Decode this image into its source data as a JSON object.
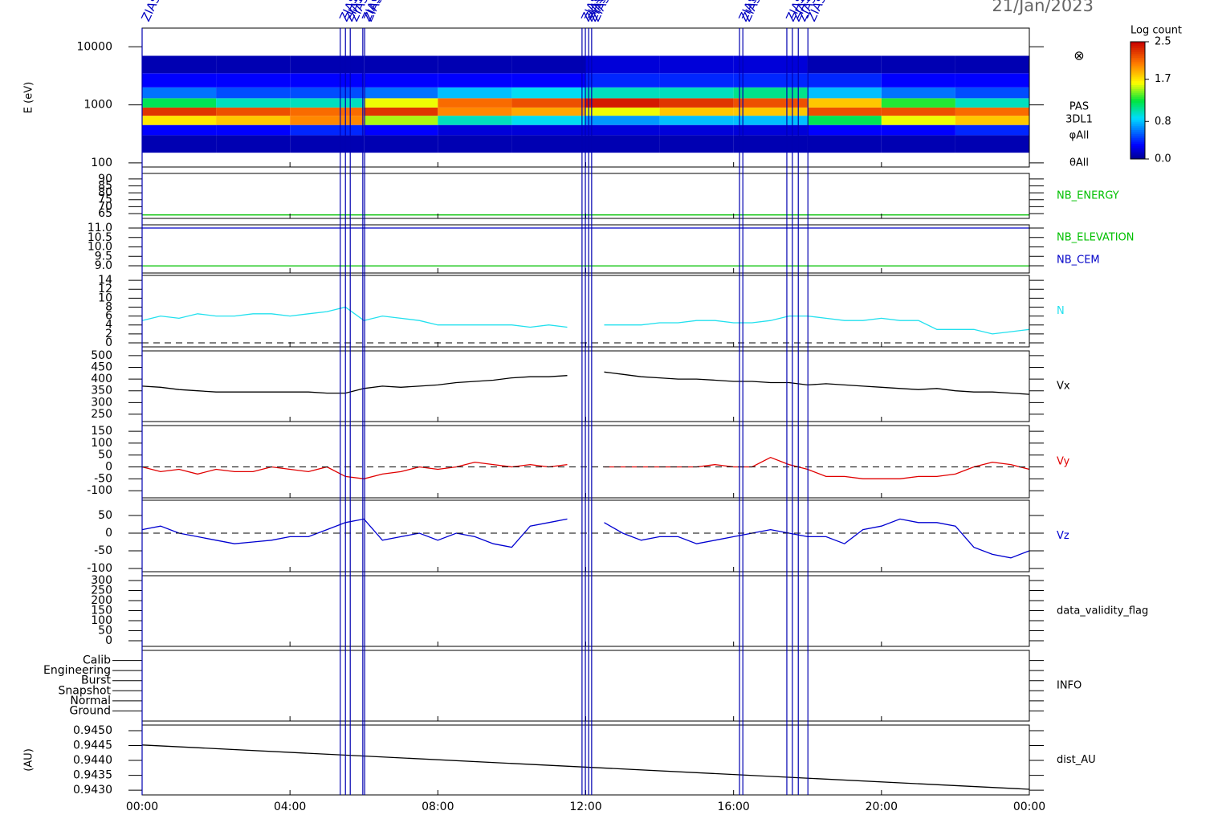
{
  "date": "21/Jan/2023",
  "event_markers": {
    "label": "ZIAS",
    "x": [
      0,
      5.36,
      5.5,
      5.63,
      5.97,
      6.02,
      11.9,
      11.99,
      12.08,
      12.16,
      16.16,
      16.25,
      17.44,
      17.59,
      17.75,
      18.01
    ]
  },
  "chart_data": [
    {
      "type": "heatmap",
      "y_label": "E (eV)",
      "log_y": true,
      "ylim": [
        85,
        21000
      ],
      "yticks": [
        100,
        1000,
        10000
      ],
      "x": [
        0,
        2,
        4,
        6,
        8,
        10,
        12,
        14,
        16,
        18,
        20,
        22,
        24
      ],
      "y": [
        150,
        300,
        450,
        650,
        900,
        1300,
        2000,
        3500,
        7000
      ],
      "values": [
        [
          0.1,
          0.3,
          1.7,
          2.3,
          1.2,
          0.6,
          0.3,
          0.1
        ],
        [
          0.1,
          0.3,
          1.8,
          2.2,
          1.0,
          0.5,
          0.3,
          0.1
        ],
        [
          0.1,
          0.4,
          2.0,
          2.1,
          1.0,
          0.5,
          0.3,
          0.1
        ],
        [
          0.1,
          0.3,
          1.5,
          2.3,
          1.6,
          0.6,
          0.3,
          0.1
        ],
        [
          0.1,
          0.2,
          1.0,
          2.0,
          2.1,
          0.8,
          0.3,
          0.1
        ],
        [
          0.1,
          0.2,
          0.9,
          1.9,
          2.2,
          0.9,
          0.3,
          0.1
        ],
        [
          0.1,
          0.2,
          0.7,
          1.6,
          2.4,
          1.0,
          0.4,
          0.2
        ],
        [
          0.1,
          0.2,
          0.8,
          1.8,
          2.3,
          1.0,
          0.4,
          0.2
        ],
        [
          0.1,
          0.2,
          0.8,
          1.8,
          2.2,
          1.1,
          0.4,
          0.2
        ],
        [
          0.1,
          0.3,
          1.2,
          2.2,
          1.8,
          0.8,
          0.4,
          0.1
        ],
        [
          0.1,
          0.3,
          1.6,
          2.2,
          1.3,
          0.6,
          0.3,
          0.1
        ],
        [
          0.1,
          0.4,
          1.8,
          2.1,
          1.0,
          0.5,
          0.3,
          0.1
        ]
      ],
      "colorbar": {
        "title": "Log count",
        "zlim": [
          0,
          2.5
        ],
        "ticks": [
          {
            "value": 0,
            "label": "0.0"
          },
          {
            "value": 0.8,
            "label": "0.8"
          },
          {
            "value": 1.7,
            "label": "1.7"
          },
          {
            "value": 2.5,
            "label": "2.5"
          }
        ]
      },
      "side_labels": [
        "PAS",
        "3DL1",
        "φAll",
        "θAll"
      ]
    },
    {
      "type": "line",
      "ylim": [
        61.5,
        94
      ],
      "yticks": [
        65,
        70,
        75,
        80,
        85,
        90
      ],
      "x": [
        0,
        24
      ],
      "series": [
        {
          "name": "NB_ENERGY",
          "color": "#00c000",
          "values": [
            64,
            64
          ]
        }
      ]
    },
    {
      "type": "line",
      "ylim": [
        8.62,
        11.17
      ],
      "yticks": [
        {
          "value": 9,
          "label": "9.0"
        },
        9.5,
        {
          "value": 10,
          "label": "10.0"
        },
        10.5,
        {
          "value": 11,
          "label": "11.0"
        }
      ],
      "x": [
        0,
        24
      ],
      "series": [
        {
          "name": "NB_ELEVATION",
          "color": "#00c000",
          "values": [
            9,
            9
          ]
        },
        {
          "name": "NB_CEM",
          "color": "#0000c8",
          "values": [
            11,
            11
          ]
        }
      ]
    },
    {
      "type": "line",
      "ylim": [
        -0.9,
        15.1
      ],
      "yticks": [
        0,
        2,
        4,
        6,
        8,
        10,
        12,
        14
      ],
      "zero_line": true,
      "x": [
        0,
        0.5,
        1,
        1.5,
        2,
        2.5,
        3,
        3.5,
        4,
        4.5,
        5,
        5.5,
        6,
        6.5,
        7,
        7.5,
        8,
        8.5,
        9,
        9.5,
        10,
        10.5,
        11,
        11.5,
        12,
        12.5,
        13,
        13.5,
        14,
        14.5,
        15,
        15.5,
        16,
        16.5,
        17,
        17.5,
        18,
        18.5,
        19,
        19.5,
        20,
        20.5,
        21,
        21.5,
        22,
        22.5,
        23,
        23.5,
        24
      ],
      "series": [
        {
          "name": "N",
          "color": "#22e0ee",
          "values": [
            5,
            6,
            5.5,
            6.5,
            6,
            6,
            6.5,
            6.5,
            6,
            6.5,
            7,
            8,
            5,
            6,
            5.5,
            5,
            4,
            4,
            4,
            4,
            4,
            3.5,
            4,
            3.5,
            null,
            4,
            4,
            4,
            4.5,
            4.5,
            5,
            5,
            4.5,
            4.5,
            5,
            6,
            6,
            5.5,
            5,
            5,
            5.5,
            5,
            5,
            3,
            3,
            3,
            2,
            2.5,
            3
          ]
        }
      ]
    },
    {
      "type": "line",
      "ylim": [
        219,
        520
      ],
      "yticks": [
        250,
        300,
        350,
        400,
        450,
        500
      ],
      "x": [
        0,
        0.5,
        1,
        1.5,
        2,
        2.5,
        3,
        3.5,
        4,
        4.5,
        5,
        5.5,
        6,
        6.5,
        7,
        7.5,
        8,
        8.5,
        9,
        9.5,
        10,
        10.5,
        11,
        11.5,
        12,
        12.5,
        13,
        13.5,
        14,
        14.5,
        15,
        15.5,
        16,
        16.5,
        17,
        17.5,
        18,
        18.5,
        19,
        19.5,
        20,
        20.5,
        21,
        21.5,
        22,
        22.5,
        23,
        23.5,
        24
      ],
      "series": [
        {
          "name": "Vx",
          "color": "#000000",
          "values": [
            370,
            365,
            355,
            350,
            345,
            345,
            345,
            345,
            345,
            345,
            340,
            340,
            360,
            370,
            365,
            370,
            375,
            385,
            390,
            395,
            405,
            410,
            410,
            415,
            null,
            430,
            420,
            410,
            405,
            400,
            400,
            395,
            390,
            390,
            385,
            385,
            375,
            380,
            375,
            370,
            365,
            360,
            355,
            360,
            350,
            345,
            345,
            340,
            335
          ]
        }
      ]
    },
    {
      "type": "line",
      "ylim": [
        -130,
        174
      ],
      "yticks": [
        -100,
        -50,
        0,
        50,
        100,
        150
      ],
      "zero_line": true,
      "x": [
        0,
        0.5,
        1,
        1.5,
        2,
        2.5,
        3,
        3.5,
        4,
        4.5,
        5,
        5.5,
        6,
        6.5,
        7,
        7.5,
        8,
        8.5,
        9,
        9.5,
        10,
        10.5,
        11,
        11.5,
        12,
        12.5,
        13,
        13.5,
        14,
        14.5,
        15,
        15.5,
        16,
        16.5,
        17,
        17.5,
        18,
        18.5,
        19,
        19.5,
        20,
        20.5,
        21,
        21.5,
        22,
        22.5,
        23,
        23.5,
        24
      ],
      "series": [
        {
          "name": "Vy",
          "color": "#e00000",
          "values": [
            0,
            -20,
            -10,
            -30,
            -10,
            -20,
            -20,
            0,
            -10,
            -20,
            0,
            -40,
            -50,
            -30,
            -20,
            0,
            -10,
            0,
            20,
            10,
            0,
            10,
            0,
            10,
            null,
            0,
            0,
            0,
            0,
            0,
            0,
            10,
            0,
            0,
            40,
            10,
            -10,
            -40,
            -40,
            -50,
            -50,
            -50,
            -40,
            -40,
            -30,
            0,
            20,
            10,
            -10
          ]
        }
      ]
    },
    {
      "type": "line",
      "ylim": [
        -109,
        93
      ],
      "yticks": [
        -100,
        -50,
        0,
        50
      ],
      "zero_line": true,
      "x": [
        0,
        0.5,
        1,
        1.5,
        2,
        2.5,
        3,
        3.5,
        4,
        4.5,
        5,
        5.5,
        6,
        6.5,
        7,
        7.5,
        8,
        8.5,
        9,
        9.5,
        10,
        10.5,
        11,
        11.5,
        12,
        12.5,
        13,
        13.5,
        14,
        14.5,
        15,
        15.5,
        16,
        16.5,
        17,
        17.5,
        18,
        18.5,
        19,
        19.5,
        20,
        20.5,
        21,
        21.5,
        22,
        22.5,
        23,
        23.5,
        24
      ],
      "series": [
        {
          "name": "Vz",
          "color": "#0000d0",
          "values": [
            10,
            20,
            0,
            -10,
            -20,
            -30,
            -25,
            -20,
            -10,
            -10,
            10,
            30,
            40,
            -20,
            -10,
            0,
            -20,
            0,
            -10,
            -30,
            -40,
            20,
            30,
            40,
            null,
            30,
            0,
            -20,
            -10,
            -10,
            -30,
            -20,
            -10,
            0,
            10,
            0,
            -10,
            -10,
            -30,
            10,
            20,
            40,
            30,
            30,
            20,
            -40,
            -60,
            -70,
            -50
          ]
        }
      ]
    },
    {
      "type": "empty",
      "ylim": [
        -28,
        324
      ],
      "yticks": [
        0,
        50,
        100,
        150,
        200,
        250,
        300
      ],
      "side_label": "data_validity_flag"
    },
    {
      "type": "category",
      "categories": [
        "Calib",
        "Engineering",
        "Burst",
        "Snapshot",
        "Normal",
        "Ground"
      ],
      "side_label": "INFO"
    },
    {
      "type": "line",
      "y_label": "(AU)",
      "ylim": [
        0.94284,
        0.94519
      ],
      "yticks": [
        {
          "value": 0.943,
          "label": "0.9430"
        },
        {
          "value": 0.9435,
          "label": "0.9435"
        },
        {
          "value": 0.944,
          "label": "0.9440"
        },
        {
          "value": 0.9445,
          "label": "0.9445"
        },
        {
          "value": 0.945,
          "label": "0.9450"
        }
      ],
      "x": [
        0,
        24
      ],
      "xlim": [
        0,
        24
      ],
      "xticks": [
        {
          "value": 0,
          "label": "00:00"
        },
        {
          "value": 4,
          "label": "04:00"
        },
        {
          "value": 8,
          "label": "08:00"
        },
        {
          "value": 12,
          "label": "12:00"
        },
        {
          "value": 16,
          "label": "16:00"
        },
        {
          "value": 20,
          "label": "20:00"
        },
        {
          "value": 24,
          "label": "00:00"
        }
      ],
      "series": [
        {
          "name": "dist_AU",
          "color": "#000000",
          "values": [
            0.94452,
            0.94303
          ]
        }
      ]
    }
  ]
}
